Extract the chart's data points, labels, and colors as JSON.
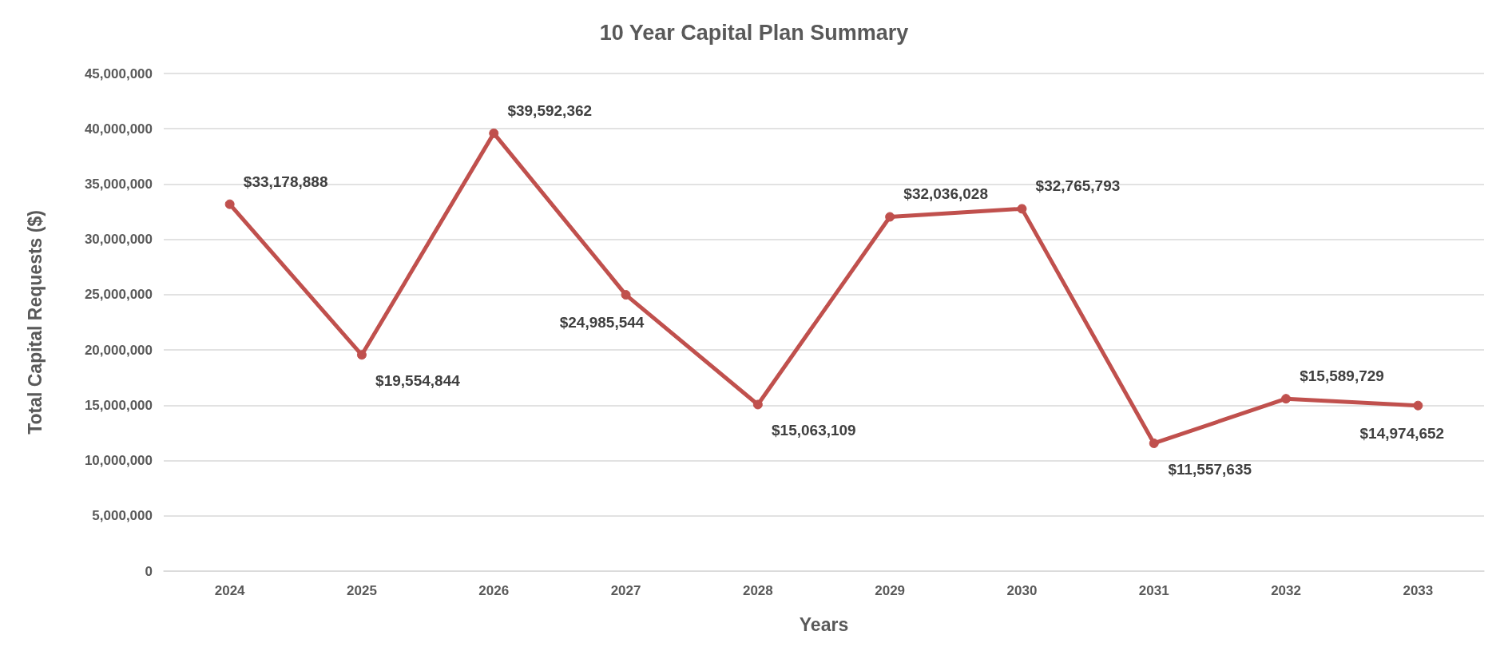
{
  "chart_data": {
    "type": "line",
    "title": "10 Year Capital Plan Summary",
    "xlabel": "Years",
    "ylabel": "Total Capital Requests ($)",
    "categories": [
      "2024",
      "2025",
      "2026",
      "2027",
      "2028",
      "2029",
      "2030",
      "2031",
      "2032",
      "2033"
    ],
    "series": [
      {
        "color": "#c0504d",
        "values": [
          33178888,
          19554844,
          39592362,
          24985544,
          15063109,
          32036028,
          32765793,
          11557635,
          15589729,
          14974652
        ],
        "value_labels": [
          "$33,178,888",
          "$19,554,844",
          "$39,592,362",
          "$24,985,544",
          "$15,063,109",
          "$32,036,028",
          "$32,765,793",
          "$11,557,635",
          "$15,589,729",
          "$14,974,652"
        ]
      }
    ],
    "ylim": [
      0,
      45000000
    ],
    "yticks": [
      0,
      {
        "value": 5000000,
        "label": "5,000,000"
      },
      {
        "value": 10000000,
        "label": "10,000,000"
      },
      {
        "value": 15000000,
        "label": "15,000,000"
      },
      {
        "value": 20000000,
        "label": "20,000,000"
      },
      {
        "value": 25000000,
        "label": "25,000,000"
      },
      {
        "value": 30000000,
        "label": "30,000,000"
      },
      {
        "value": 35000000,
        "label": "35,000,000"
      },
      {
        "value": 40000000,
        "label": "40,000,000"
      },
      {
        "value": 45000000,
        "label": "45,000,000"
      }
    ],
    "grid": "y",
    "marker": "circle",
    "line_style": "solid"
  }
}
